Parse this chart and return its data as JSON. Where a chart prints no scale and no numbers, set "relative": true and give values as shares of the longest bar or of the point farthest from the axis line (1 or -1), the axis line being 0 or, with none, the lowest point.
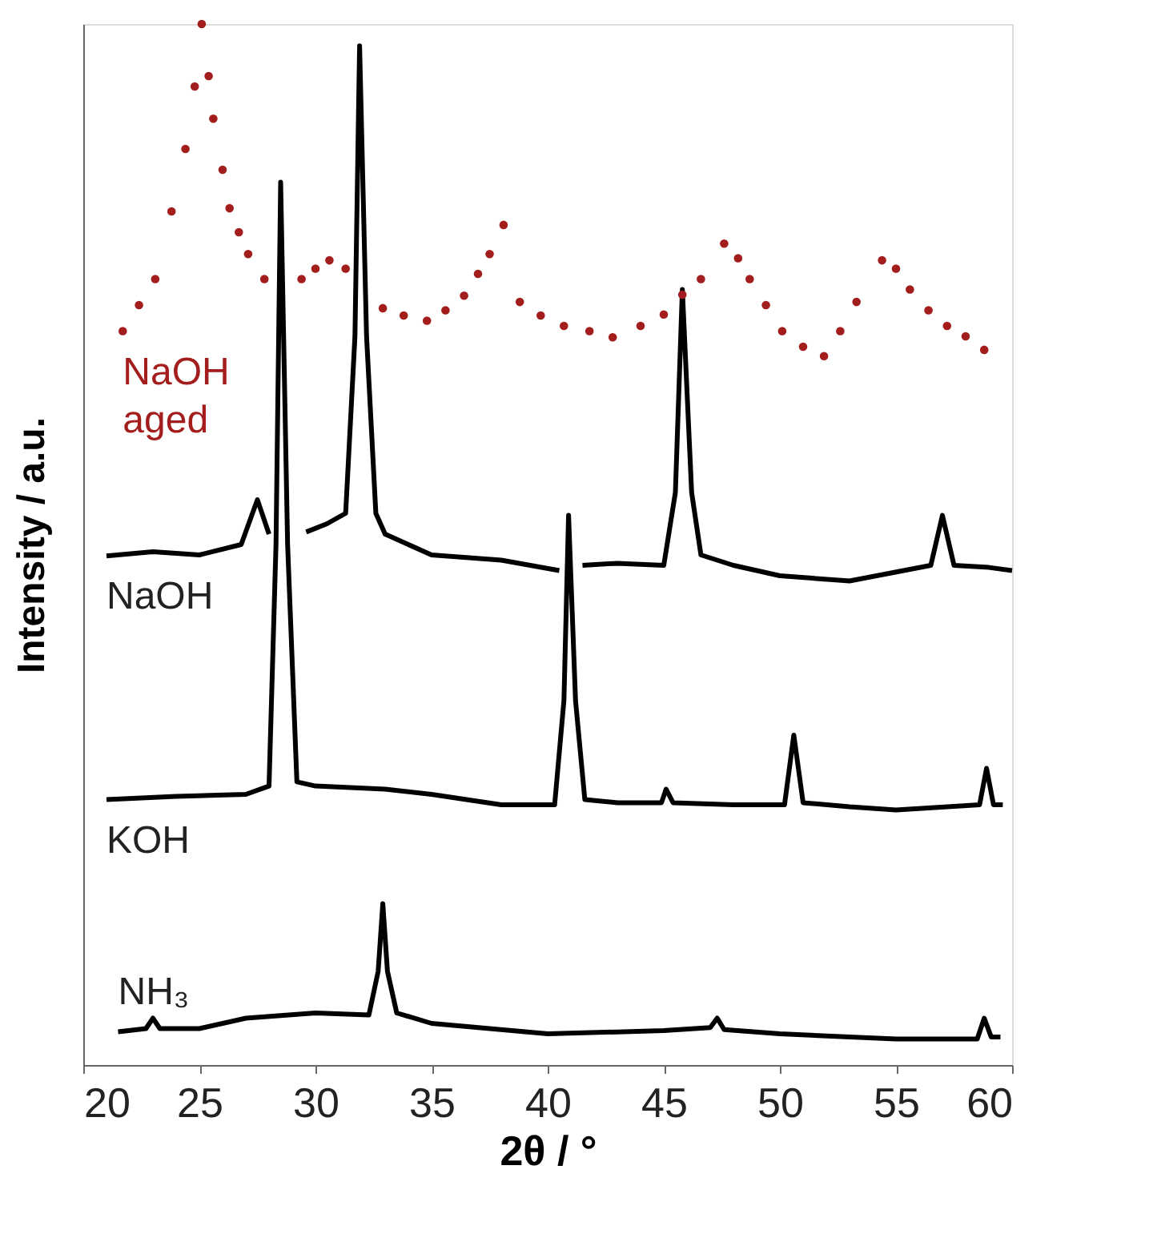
{
  "chart_data": {
    "type": "line",
    "relative": true,
    "xlabel": "2θ / °",
    "ylabel": "Intensity / a.u.",
    "xlim": [
      20,
      60
    ],
    "xticks": [
      20,
      25,
      30,
      35,
      40,
      45,
      50,
      55,
      60
    ],
    "tick_labels": "x",
    "grid": false,
    "line_style": "solid",
    "series": [
      {
        "name": "NaOH aged",
        "type": "scatter",
        "marker": "circle",
        "color": "#a31d1d",
        "x": [
          21.7,
          22.4,
          23.1,
          23.8,
          24.4,
          24.8,
          25.1,
          25.4,
          25.6,
          26.0,
          26.3,
          26.7,
          27.1,
          27.8,
          29.4,
          30.0,
          30.6,
          31.3,
          32.9,
          33.8,
          34.8,
          35.6,
          36.4,
          37.0,
          37.5,
          38.1,
          38.8,
          39.7,
          40.7,
          41.8,
          42.8,
          44.0,
          45.0,
          45.8,
          46.6,
          47.6,
          48.2,
          48.7,
          49.4,
          50.1,
          51.0,
          51.9,
          52.6,
          53.3,
          54.4,
          55.0,
          55.6,
          56.4,
          57.2,
          58.0,
          58.8
        ],
        "values": [
          0.705,
          0.73,
          0.755,
          0.82,
          0.88,
          0.94,
          1,
          0.95,
          0.909,
          0.86,
          0.823,
          0.8,
          0.779,
          0.755,
          0.755,
          0.765,
          0.773,
          0.765,
          0.727,
          0.72,
          0.715,
          0.725,
          0.739,
          0.76,
          0.779,
          0.807,
          0.733,
          0.72,
          0.71,
          0.705,
          0.699,
          0.71,
          0.721,
          0.74,
          0.755,
          0.789,
          0.775,
          0.755,
          0.73,
          0.705,
          0.69,
          0.681,
          0.705,
          0.733,
          0.773,
          0.765,
          0.745,
          0.725,
          0.71,
          0.7,
          0.687
        ]
      },
      {
        "name": "NaOH",
        "color": "#000000",
        "x": [
          21.0,
          23.0,
          25.0,
          26.8,
          27.5,
          28.0,
          28.3,
          29.4,
          29.6,
          30.5,
          31.3,
          31.7,
          31.9,
          32.2,
          32.6,
          33.0,
          35.0,
          38.0,
          40.5,
          41.0,
          41.5,
          43.0,
          45.0,
          45.5,
          45.8,
          46.2,
          46.6,
          48.0,
          50.0,
          53.0,
          56.5,
          57.0,
          57.5,
          59.0,
          60.0
        ],
        "values": [
          0.489,
          0.493,
          0.49,
          0.5,
          0.543,
          0.51,
          null,
          null,
          0.512,
          0.52,
          0.53,
          0.7,
          0.979,
          0.7,
          0.53,
          0.51,
          0.49,
          0.485,
          0.475,
          null,
          0.48,
          0.482,
          0.48,
          0.55,
          0.745,
          0.55,
          0.49,
          0.48,
          0.47,
          0.465,
          0.48,
          0.528,
          0.48,
          0.478,
          0.475
        ]
      },
      {
        "name": "KOH",
        "color": "#000000",
        "x": [
          21.0,
          24.0,
          27.0,
          28.0,
          28.3,
          28.5,
          28.8,
          29.2,
          30.0,
          33.0,
          35.0,
          38.0,
          40.3,
          40.7,
          40.9,
          41.2,
          41.6,
          43.0,
          44.9,
          45.1,
          45.4,
          48.0,
          50.2,
          50.6,
          51.0,
          53.0,
          55.0,
          58.6,
          58.9,
          59.2,
          59.6
        ],
        "values": [
          0.255,
          0.258,
          0.26,
          0.268,
          0.5,
          0.848,
          0.5,
          0.272,
          0.268,
          0.265,
          0.26,
          0.25,
          0.25,
          0.35,
          0.528,
          0.35,
          0.255,
          0.252,
          0.252,
          0.265,
          0.252,
          0.25,
          0.25,
          0.317,
          0.252,
          0.248,
          0.245,
          0.25,
          0.285,
          0.25,
          0.25
        ]
      },
      {
        "name": "NH₃",
        "color": "#000000",
        "x": [
          21.5,
          22.7,
          23.0,
          23.3,
          25.0,
          27.0,
          30.0,
          32.3,
          32.7,
          32.9,
          33.1,
          33.5,
          35.0,
          40.0,
          45.0,
          47.0,
          47.3,
          47.6,
          50.0,
          55.0,
          58.5,
          58.8,
          59.1,
          59.5
        ],
        "values": [
          0.032,
          0.035,
          0.045,
          0.035,
          0.035,
          0.045,
          0.05,
          0.048,
          0.09,
          0.155,
          0.09,
          0.05,
          0.04,
          0.03,
          0.033,
          0.036,
          0.045,
          0.034,
          0.03,
          0.025,
          0.025,
          0.045,
          0.027,
          0.027
        ]
      }
    ]
  }
}
